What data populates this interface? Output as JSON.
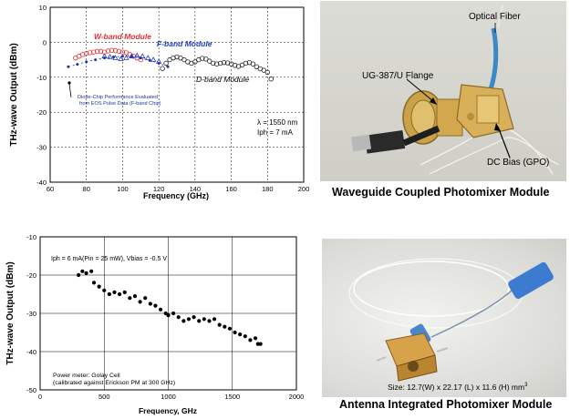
{
  "chart_data": [
    {
      "type": "scatter",
      "xlabel": "Frequency (GHz)",
      "ylabel": "THz-wave Output (dBm)",
      "xlim": [
        60,
        200
      ],
      "ylim": [
        -40,
        10
      ],
      "xticks": [
        "60",
        "80",
        "100",
        "120",
        "140",
        "160",
        "180",
        "200"
      ],
      "yticks": [
        "10",
        "0",
        "-10",
        "-20",
        "-30",
        "-40"
      ],
      "grid": true,
      "annotations": [
        "W-band Module",
        "F-band Module",
        "D-band Module",
        "Diode-Chip Performance Evaluated",
        "from EOS Pulse Data (F-band Chip)",
        "λ = 1550 nm",
        "Iph = 7 mA"
      ],
      "series": [
        {
          "name": "W-band Module",
          "color": "#e03030",
          "marker": "open-circle",
          "x": [
            74,
            76,
            78,
            80,
            82,
            84,
            86,
            88,
            90,
            92,
            94,
            96,
            98,
            100,
            102,
            104,
            106,
            108,
            110
          ],
          "y": [
            -4.5,
            -4,
            -3.5,
            -3.2,
            -3,
            -2.8,
            -2.6,
            -2.6,
            -2.8,
            -2.5,
            -2.3,
            -2.4,
            -2.6,
            -2.8,
            -3,
            -3.5,
            -4,
            -4.5,
            -5
          ]
        },
        {
          "name": "F-band Module",
          "color": "#2040c8",
          "marker": "open-triangle",
          "x": [
            90,
            93,
            96,
            99,
            102,
            105,
            108,
            111,
            114,
            117,
            120
          ],
          "y": [
            -4,
            -4.2,
            -4.5,
            -4.8,
            -4.5,
            -4,
            -3.8,
            -4,
            -4.5,
            -5,
            -5.5
          ]
        },
        {
          "name": "D-band Module",
          "color": "#222222",
          "marker": "open-circle",
          "x": [
            122,
            124,
            126,
            128,
            130,
            132,
            134,
            136,
            138,
            140,
            142,
            144,
            146,
            148,
            150,
            152,
            154,
            156,
            158,
            160,
            162,
            164,
            166,
            168,
            170,
            172,
            174,
            176,
            178,
            180,
            182
          ],
          "y": [
            -7.5,
            -6,
            -5,
            -4.5,
            -4.2,
            -4.5,
            -5,
            -5.6,
            -6,
            -5.6,
            -5,
            -4.6,
            -4.8,
            -5.4,
            -6,
            -6.2,
            -6,
            -5.8,
            -5.9,
            -6.2,
            -6.6,
            -6.9,
            -6.5,
            -6,
            -5.8,
            -6.2,
            -7,
            -7.6,
            -8,
            -8.6,
            -10.5
          ]
        },
        {
          "name": "Diode-Chip Performance",
          "color": "#2030a0",
          "marker": "dot-dashed",
          "x": [
            70,
            75,
            80,
            85,
            90,
            95,
            100,
            105,
            110,
            115,
            120,
            125
          ],
          "y": [
            -7,
            -6.3,
            -5.6,
            -5,
            -4.5,
            -4.2,
            -4,
            -4.1,
            -4.5,
            -5.2,
            -6,
            -7
          ]
        }
      ]
    },
    {
      "type": "scatter",
      "xlabel": "Frequency, GHz",
      "ylabel": "THz-wave Output (dBm)",
      "xlim": [
        0,
        2000
      ],
      "ylim": [
        -50,
        -10
      ],
      "xticks": [
        "0",
        "500",
        "1000",
        "1500",
        "2000"
      ],
      "yticks": [
        "-10",
        "-20",
        "-30",
        "-40",
        "-50"
      ],
      "grid": true,
      "annotations": [
        "Iph = 6 mA(Pin = 25 mW), Vbias = -0.5 V",
        "Power meter: Golay Cell",
        "(calibrated against Erickson PM at 300 GHz)"
      ],
      "series": [
        {
          "name": "",
          "color": "#000000",
          "marker": "filled-circle",
          "x": [
            300,
            330,
            360,
            400,
            420,
            460,
            500,
            540,
            580,
            620,
            660,
            700,
            740,
            780,
            820,
            860,
            900,
            940,
            980,
            1000,
            1040,
            1080,
            1120,
            1160,
            1200,
            1240,
            1280,
            1320,
            1360,
            1400,
            1440,
            1480,
            1520,
            1560,
            1600,
            1640,
            1680,
            1700,
            1720
          ],
          "y": [
            -20,
            -19,
            -19.5,
            -19,
            -22,
            -23,
            -24,
            -25,
            -24.5,
            -25,
            -24.5,
            -26,
            -25.5,
            -27,
            -26,
            -27.5,
            -28,
            -29,
            -30,
            -30.5,
            -30,
            -31,
            -32,
            -31.5,
            -31,
            -32,
            -31.5,
            -32,
            -31.5,
            -33,
            -33.5,
            -34,
            -35,
            -35.5,
            -36,
            -37,
            -36.5,
            -38,
            -38
          ]
        }
      ]
    }
  ],
  "photos": {
    "top": {
      "caption": "Waveguide Coupled Photomixer Module",
      "labels": {
        "fiber": "Optical Fiber",
        "flange": "UG-387/U Flange",
        "bias": "DC Bias (GPO)"
      }
    },
    "bottom": {
      "caption": "Antenna Integrated Photomixer Module",
      "size_label": "Size: 12.7(W) x 22.17 (L) x 11.6 (H) mm",
      "size_unit_sup": "3"
    }
  }
}
